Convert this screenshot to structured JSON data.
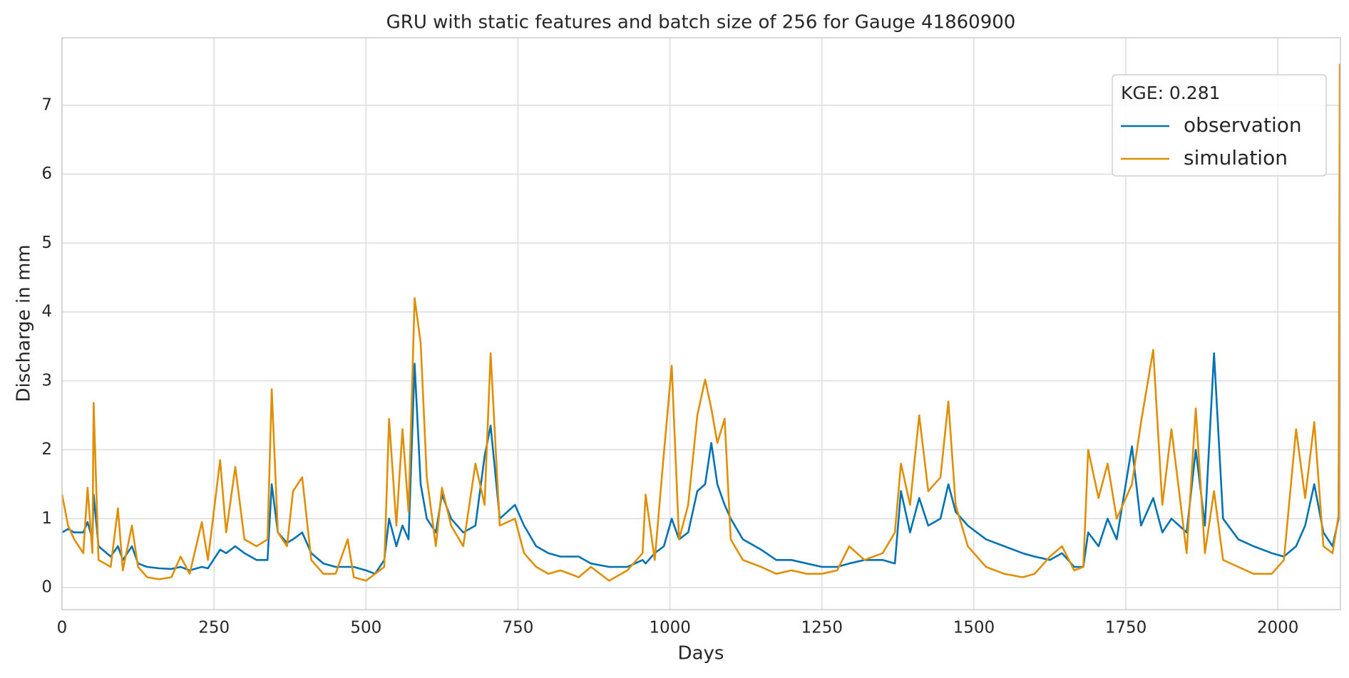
{
  "chart_data": {
    "type": "line",
    "title": "GRU with static features and batch size of 256 for Gauge 41860900",
    "xlabel": "Days",
    "ylabel": "Discharge in mm",
    "legend_title": "KGE: 0.281",
    "legend": "upper right",
    "grid": true,
    "xlim": [
      0,
      2103
    ],
    "ylim": [
      -0.32,
      7.98
    ],
    "xticks": [
      0,
      250,
      500,
      750,
      1000,
      1250,
      1500,
      1750,
      2000
    ],
    "yticks": [
      0,
      1,
      2,
      3,
      4,
      5,
      6,
      7
    ],
    "x": [
      0,
      10,
      20,
      35,
      42,
      50,
      52,
      60,
      80,
      92,
      100,
      115,
      125,
      140,
      160,
      180,
      195,
      210,
      230,
      240,
      260,
      270,
      285,
      300,
      320,
      338,
      345,
      355,
      370,
      380,
      395,
      410,
      430,
      450,
      470,
      480,
      500,
      515,
      530,
      538,
      550,
      560,
      570,
      580,
      590,
      600,
      615,
      625,
      640,
      660,
      680,
      695,
      705,
      720,
      745,
      760,
      780,
      800,
      820,
      850,
      870,
      900,
      930,
      955,
      960,
      975,
      990,
      1003,
      1015,
      1030,
      1045,
      1058,
      1068,
      1078,
      1090,
      1100,
      1120,
      1150,
      1175,
      1200,
      1225,
      1250,
      1275,
      1295,
      1320,
      1350,
      1370,
      1380,
      1395,
      1410,
      1425,
      1445,
      1458,
      1470,
      1490,
      1520,
      1550,
      1580,
      1600,
      1625,
      1645,
      1665,
      1680,
      1688,
      1705,
      1720,
      1735,
      1760,
      1775,
      1795,
      1810,
      1825,
      1850,
      1865,
      1880,
      1895,
      1910,
      1935,
      1960,
      1990,
      2010,
      2030,
      2045,
      2060,
      2075,
      2090,
      2100,
      2102
    ],
    "series": [
      {
        "name": "observation",
        "color": "#0072b2",
        "values": [
          0.8,
          0.85,
          0.8,
          0.8,
          0.95,
          0.7,
          1.35,
          0.6,
          0.45,
          0.6,
          0.4,
          0.6,
          0.35,
          0.3,
          0.28,
          0.27,
          0.3,
          0.25,
          0.3,
          0.28,
          0.55,
          0.5,
          0.6,
          0.5,
          0.4,
          0.4,
          1.5,
          0.8,
          0.65,
          0.7,
          0.8,
          0.5,
          0.35,
          0.3,
          0.3,
          0.3,
          0.25,
          0.2,
          0.4,
          1.0,
          0.6,
          0.9,
          0.7,
          3.25,
          1.5,
          1.0,
          0.8,
          1.35,
          1.0,
          0.8,
          0.9,
          1.9,
          2.35,
          1.0,
          1.2,
          0.9,
          0.6,
          0.5,
          0.45,
          0.45,
          0.35,
          0.3,
          0.3,
          0.4,
          0.35,
          0.5,
          0.6,
          1.0,
          0.7,
          0.8,
          1.4,
          1.5,
          2.1,
          1.5,
          1.2,
          1.0,
          0.7,
          0.55,
          0.4,
          0.4,
          0.35,
          0.3,
          0.3,
          0.35,
          0.4,
          0.4,
          0.35,
          1.4,
          0.8,
          1.3,
          0.9,
          1.0,
          1.5,
          1.1,
          0.9,
          0.7,
          0.6,
          0.5,
          0.45,
          0.4,
          0.5,
          0.3,
          0.3,
          0.8,
          0.6,
          1.0,
          0.7,
          2.05,
          0.9,
          1.3,
          0.8,
          1.0,
          0.8,
          2.0,
          0.9,
          3.4,
          1.0,
          0.7,
          0.6,
          0.5,
          0.45,
          0.6,
          0.9,
          1.5,
          0.8,
          0.6,
          1.0,
          4.75
        ]
      },
      {
        "name": "simulation",
        "color": "#de8f05",
        "values": [
          1.35,
          0.9,
          0.7,
          0.5,
          1.45,
          0.5,
          2.68,
          0.4,
          0.3,
          1.15,
          0.25,
          0.9,
          0.3,
          0.15,
          0.12,
          0.15,
          0.45,
          0.2,
          0.95,
          0.4,
          1.85,
          0.8,
          1.75,
          0.7,
          0.6,
          0.7,
          2.88,
          0.8,
          0.6,
          1.4,
          1.6,
          0.4,
          0.2,
          0.2,
          0.7,
          0.15,
          0.1,
          0.2,
          0.3,
          2.45,
          0.9,
          2.3,
          1.1,
          4.2,
          3.55,
          1.6,
          0.6,
          1.45,
          0.9,
          0.6,
          1.8,
          1.2,
          3.4,
          0.9,
          1.0,
          0.5,
          0.3,
          0.2,
          0.25,
          0.15,
          0.3,
          0.1,
          0.25,
          0.5,
          1.35,
          0.4,
          1.95,
          3.22,
          0.7,
          1.2,
          2.5,
          3.02,
          2.6,
          2.1,
          2.45,
          0.7,
          0.4,
          0.3,
          0.2,
          0.25,
          0.2,
          0.2,
          0.25,
          0.6,
          0.4,
          0.5,
          0.8,
          1.8,
          1.2,
          2.5,
          1.4,
          1.6,
          2.7,
          1.2,
          0.6,
          0.3,
          0.2,
          0.15,
          0.2,
          0.45,
          0.6,
          0.25,
          0.3,
          2.0,
          1.3,
          1.8,
          1.0,
          1.5,
          2.4,
          3.45,
          1.2,
          2.3,
          0.5,
          2.6,
          0.5,
          1.4,
          0.4,
          0.3,
          0.2,
          0.2,
          0.4,
          2.3,
          1.3,
          2.4,
          0.6,
          0.5,
          1.05,
          7.6
        ]
      }
    ]
  }
}
